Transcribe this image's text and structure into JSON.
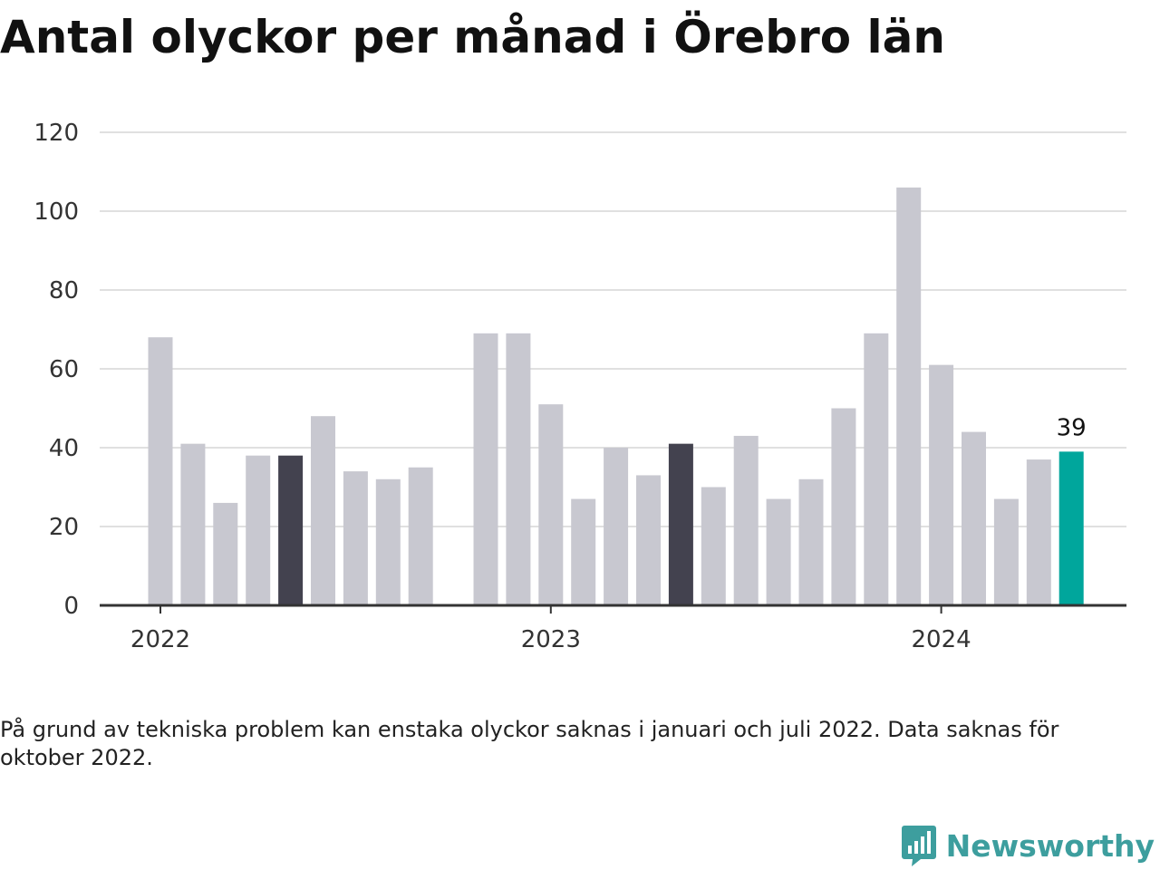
{
  "chart_data": {
    "type": "bar",
    "title": "Antal olyckor per månad i Örebro län",
    "xlabel": "",
    "ylabel": "",
    "ylim": [
      0,
      120
    ],
    "yticks": [
      0,
      20,
      40,
      60,
      80,
      100,
      120
    ],
    "xticks": [
      {
        "label": "2022",
        "month": "2022-01"
      },
      {
        "label": "2023",
        "month": "2023-01"
      },
      {
        "label": "2024",
        "month": "2024-01"
      }
    ],
    "grid": true,
    "legend": "none",
    "months": [
      "2022-01",
      "2022-02",
      "2022-03",
      "2022-04",
      "2022-05",
      "2022-06",
      "2022-07",
      "2022-08",
      "2022-09",
      "2022-10",
      "2022-11",
      "2022-12",
      "2023-01",
      "2023-02",
      "2023-03",
      "2023-04",
      "2023-05",
      "2023-06",
      "2023-07",
      "2023-08",
      "2023-09",
      "2023-10",
      "2023-11",
      "2023-12",
      "2024-01",
      "2024-02",
      "2024-03",
      "2024-04",
      "2024-05"
    ],
    "values": [
      68,
      41,
      26,
      38,
      38,
      48,
      34,
      32,
      35,
      null,
      69,
      69,
      51,
      27,
      40,
      33,
      41,
      30,
      43,
      27,
      32,
      50,
      69,
      106,
      61,
      44,
      27,
      37,
      39
    ],
    "highlight": {
      "2022-05": "dark",
      "2023-05": "dark",
      "2024-05": "accent"
    },
    "data_labels": [
      {
        "month": "2024-05",
        "text": "39"
      }
    ],
    "colors": {
      "default": "#c8c8d0",
      "dark": "#43424f",
      "accent": "#00a69c",
      "grid": "#e0e0e0",
      "axis": "#333333"
    }
  },
  "footnote": "På grund av tekniska problem kan enstaka olyckor saknas i januari och juli 2022. Data saknas för oktober 2022.",
  "brand": {
    "name": "Newsworthy",
    "icon": "newsworthy-chart-bubble-icon",
    "color": "#3d9e9e"
  }
}
